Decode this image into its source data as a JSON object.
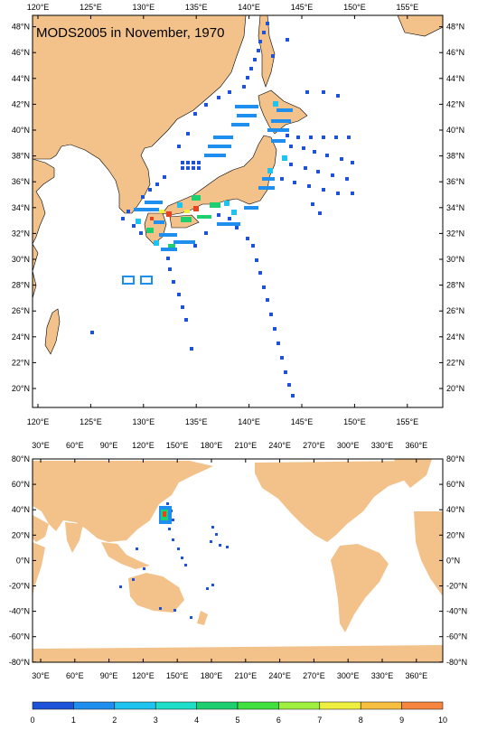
{
  "title": "MODS2005 in November, 1970",
  "colors": {
    "land": "#f2c28a",
    "ocean": "#ffffff",
    "frame": "#000000",
    "coast": "#000000"
  },
  "regional_map": {
    "lon_labels": [
      "120°E",
      "125°E",
      "130°E",
      "135°E",
      "140°E",
      "145°E",
      "150°E",
      "155°E"
    ],
    "lat_labels": [
      "20°N",
      "22°N",
      "24°N",
      "26°N",
      "28°N",
      "30°N",
      "32°N",
      "34°N",
      "36°N",
      "38°N",
      "40°N",
      "42°N",
      "44°N",
      "46°N",
      "48°N"
    ]
  },
  "global_map": {
    "lon_labels": [
      "30°E",
      "60°E",
      "90°E",
      "120°E",
      "150°E",
      "180°E",
      "210°E",
      "240°E",
      "270°E",
      "300°E",
      "330°E",
      "360°E"
    ],
    "lat_labels": [
      "80°N",
      "60°N",
      "40°N",
      "20°N",
      "0°N",
      "-20°N",
      "-40°N",
      "-60°N",
      "-80°N"
    ]
  },
  "colorbar": {
    "labels": [
      "0",
      "1",
      "2",
      "3",
      "4",
      "5",
      "6",
      "7",
      "8",
      "9",
      "10"
    ],
    "colors": [
      "#1e52d9",
      "#1e8fef",
      "#1ec4ef",
      "#1ee0c8",
      "#1ecf6f",
      "#3fe03f",
      "#9fef3f",
      "#efef3f",
      "#f7bf3f",
      "#f7853f",
      "#e8431e"
    ]
  }
}
